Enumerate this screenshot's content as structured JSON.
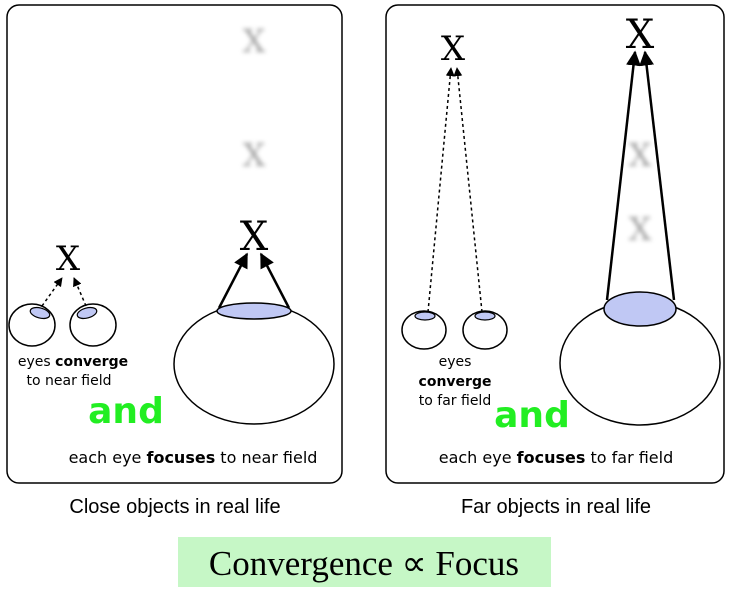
{
  "left_panel": {
    "caption": "Close objects in real life",
    "eyes_line1": "eyes",
    "eyes_bold": "converge",
    "eyes_line2": "to near field",
    "and_text": "and",
    "focus_pre": "each eye ",
    "focus_bold": "focuses",
    "focus_post": " to near field",
    "target_mark": "X"
  },
  "right_panel": {
    "caption": "Far objects in real life",
    "eyes_line1": "eyes",
    "eyes_bold": "converge",
    "eyes_line2": "to far field",
    "and_text": "and",
    "focus_pre": "each eye ",
    "focus_bold": "focuses",
    "focus_post": " to far field",
    "target_mark": "X"
  },
  "formula": "Convergence ∝ Focus",
  "colors": {
    "pupil": "#c0c8f4",
    "and_green": "#22ee22",
    "formula_bg": "#c6f7c6"
  }
}
